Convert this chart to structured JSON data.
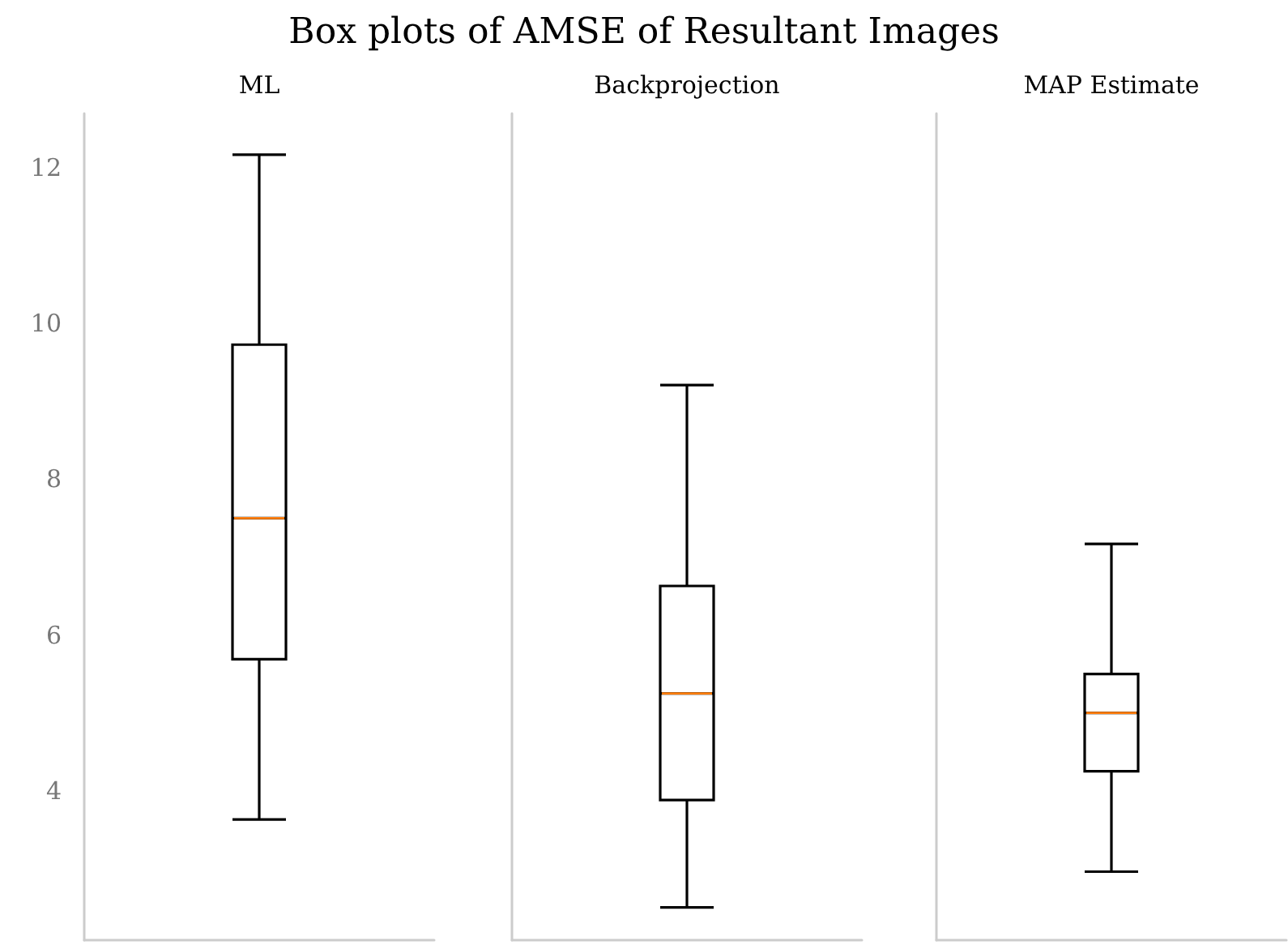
{
  "chart_data": {
    "type": "box",
    "title": "Box plots of AMSE of Resultant Images",
    "categories": [
      "ML",
      "Backprojection",
      "MAP Estimate"
    ],
    "boxes": [
      {
        "low": 3.63,
        "q1": 5.69,
        "median": 7.5,
        "q3": 9.73,
        "high": 12.17
      },
      {
        "low": 2.5,
        "q1": 3.88,
        "median": 5.25,
        "q3": 6.63,
        "high": 9.21
      },
      {
        "low": 2.96,
        "q1": 4.25,
        "median": 5.0,
        "q3": 5.5,
        "high": 7.17
      }
    ],
    "ylim": [
      2.08,
      12.7
    ],
    "yticks": [
      4,
      6,
      8,
      10,
      12
    ],
    "grid": false
  }
}
